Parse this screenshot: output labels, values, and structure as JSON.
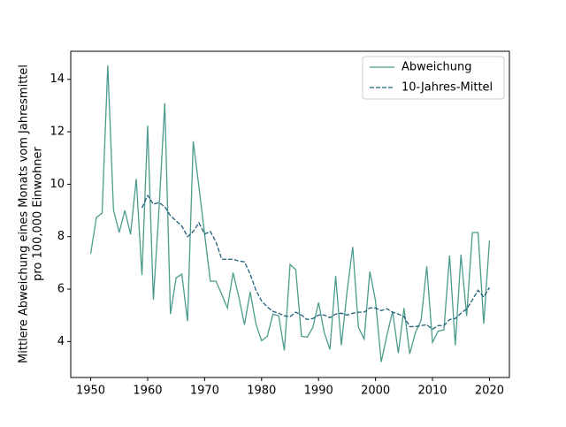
{
  "chart_data": {
    "type": "line",
    "ylabel": [
      "Mittlere Abweichung eines Monats vom Jahresmittel",
      "pro 100,000 Einwohner"
    ],
    "x": [
      1950,
      1951,
      1952,
      1953,
      1954,
      1955,
      1956,
      1957,
      1958,
      1959,
      1960,
      1961,
      1962,
      1963,
      1964,
      1965,
      1966,
      1967,
      1968,
      1969,
      1970,
      1971,
      1972,
      1973,
      1974,
      1975,
      1976,
      1977,
      1978,
      1979,
      1980,
      1981,
      1982,
      1983,
      1984,
      1985,
      1986,
      1987,
      1988,
      1989,
      1990,
      1991,
      1992,
      1993,
      1994,
      1995,
      1996,
      1997,
      1998,
      1999,
      2000,
      2001,
      2002,
      2003,
      2004,
      2005,
      2006,
      2007,
      2008,
      2009,
      2010,
      2011,
      2012,
      2013,
      2014,
      2015,
      2016,
      2017,
      2018,
      2019,
      2020
    ],
    "series": [
      {
        "name": "Abweichung",
        "color": "#4c9c8c",
        "style": "solid",
        "values": [
          7.35,
          8.73,
          8.9,
          14.54,
          9.03,
          8.16,
          9.0,
          8.09,
          10.2,
          6.53,
          12.24,
          5.59,
          9.07,
          13.09,
          5.05,
          6.43,
          6.57,
          4.78,
          11.64,
          9.9,
          8.1,
          6.3,
          6.3,
          5.8,
          5.28,
          6.63,
          5.7,
          4.64,
          5.9,
          4.68,
          4.03,
          4.2,
          5.05,
          4.98,
          3.66,
          6.94,
          6.74,
          4.2,
          4.17,
          4.54,
          5.49,
          4.34,
          3.7,
          6.5,
          3.86,
          5.9,
          7.61,
          4.54,
          4.1,
          6.67,
          5.55,
          3.22,
          4.24,
          5.15,
          3.56,
          5.28,
          3.53,
          4.34,
          4.81,
          6.87,
          3.97,
          4.4,
          4.44,
          7.28,
          3.86,
          7.31,
          4.98,
          8.16,
          8.16,
          4.68,
          7.85
        ]
      },
      {
        "name": "10-Jahres-Mittel",
        "color": "#1f5f7a",
        "style": "dashed",
        "values": [
          null,
          null,
          null,
          null,
          null,
          null,
          null,
          null,
          null,
          9.1,
          9.57,
          9.24,
          9.3,
          9.14,
          8.8,
          8.6,
          8.4,
          8.0,
          8.2,
          8.53,
          8.1,
          8.2,
          7.8,
          7.14,
          7.14,
          7.14,
          7.07,
          7.04,
          6.57,
          5.96,
          5.55,
          5.32,
          5.15,
          5.08,
          4.98,
          4.95,
          5.12,
          5.01,
          4.84,
          4.88,
          5.01,
          5.01,
          4.91,
          5.05,
          5.08,
          5.01,
          5.08,
          5.12,
          5.12,
          5.28,
          5.28,
          5.18,
          5.25,
          5.12,
          5.05,
          4.95,
          4.57,
          4.57,
          4.61,
          4.64,
          4.47,
          4.61,
          4.61,
          4.84,
          4.88,
          5.08,
          5.25,
          5.59,
          5.96,
          5.7,
          6.06
        ]
      }
    ],
    "xlim": [
      1946.5,
      2023.5
    ],
    "ylim": [
      2.63,
      15.07
    ],
    "xticks": [
      1950,
      1960,
      1970,
      1980,
      1990,
      2000,
      2010,
      2020
    ],
    "yticks": [
      4,
      6,
      8,
      10,
      12,
      14
    ],
    "legend": "upper right"
  }
}
